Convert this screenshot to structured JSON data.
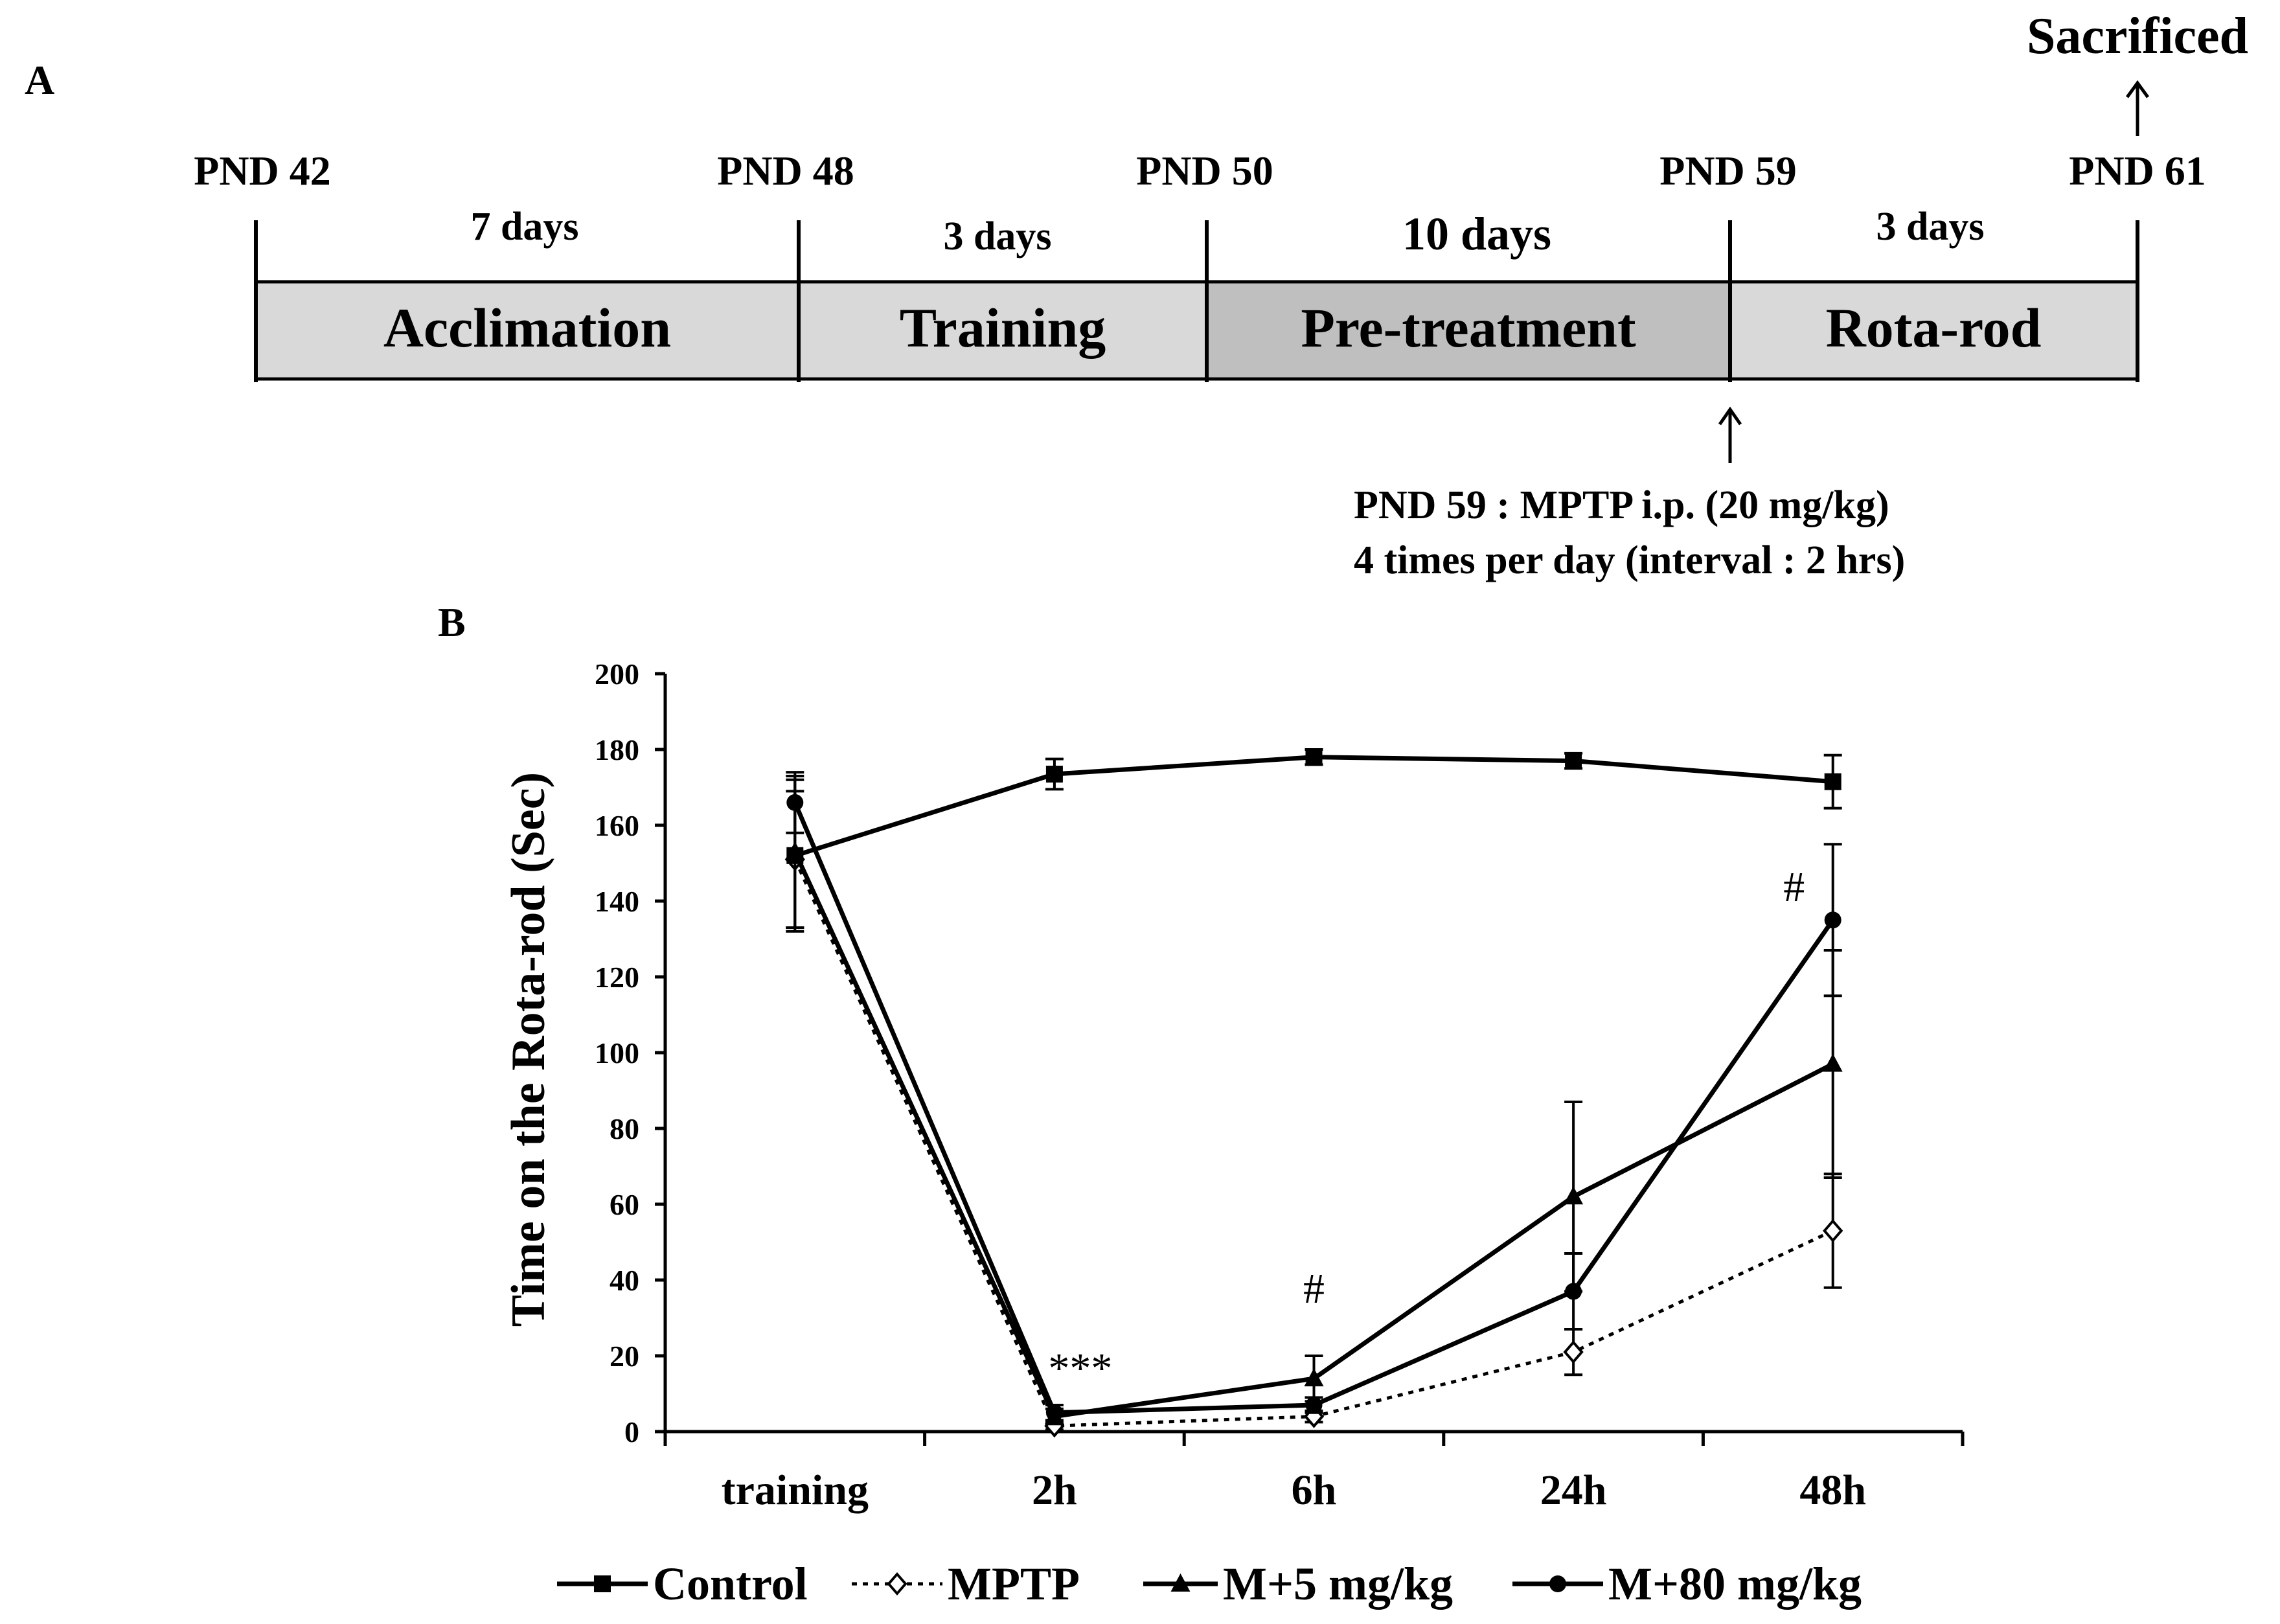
{
  "panelA": {
    "label": "A",
    "sacrificed": "Sacrificed",
    "pnd": [
      "PND 42",
      "PND 48",
      "PND 50",
      "PND 59",
      "PND 61"
    ],
    "durations": [
      "7 days",
      "3 days",
      "10 days",
      "3 days"
    ],
    "phases": [
      "Acclimation",
      "Training",
      "Pre-treatment",
      "Rota-rod"
    ],
    "note_line1": "PND 59 : MPTP i.p. (20 mg/kg)",
    "note_line2": "4 times per day (interval : 2 hrs)",
    "colors": {
      "phase": "#d9d9d9",
      "pretreatment": "#bfbfbf"
    }
  },
  "panelB": {
    "label": "B"
  },
  "chart_data": {
    "type": "line",
    "categories": [
      "training",
      "2h",
      "6h",
      "24h",
      "48h"
    ],
    "ylabel": "Time on the Rota-rod (Sec)",
    "xlabel": "",
    "ylim": [
      0,
      200
    ],
    "yticks": [
      0,
      20,
      40,
      60,
      80,
      100,
      120,
      140,
      160,
      180,
      200
    ],
    "series": [
      {
        "name": "Control",
        "marker": "square",
        "dashed": false,
        "values": [
          152,
          173.5,
          178,
          177,
          171.5
        ],
        "errors": [
          20,
          4,
          2,
          2,
          7
        ]
      },
      {
        "name": "MPTP",
        "marker": "diamond-open",
        "dashed": true,
        "values": [
          151,
          1.5,
          4,
          21,
          53
        ],
        "errors": [
          18,
          1,
          1.5,
          6,
          15
        ]
      },
      {
        "name": "M+5 mg/kg",
        "marker": "triangle",
        "dashed": false,
        "values": [
          153,
          4,
          14,
          62,
          97
        ],
        "errors": [
          20,
          2,
          6,
          25,
          30
        ]
      },
      {
        "name": "M+80 mg/kg",
        "marker": "circle",
        "dashed": false,
        "values": [
          166,
          5,
          7,
          37,
          135
        ],
        "errors": [
          8,
          2,
          2,
          10,
          20
        ]
      }
    ],
    "annotations": [
      {
        "text": "***",
        "category": "2h",
        "y": 13
      },
      {
        "text": "#",
        "category": "6h",
        "y": 34
      },
      {
        "text": "#",
        "category": "48h",
        "y": 140
      }
    ]
  }
}
